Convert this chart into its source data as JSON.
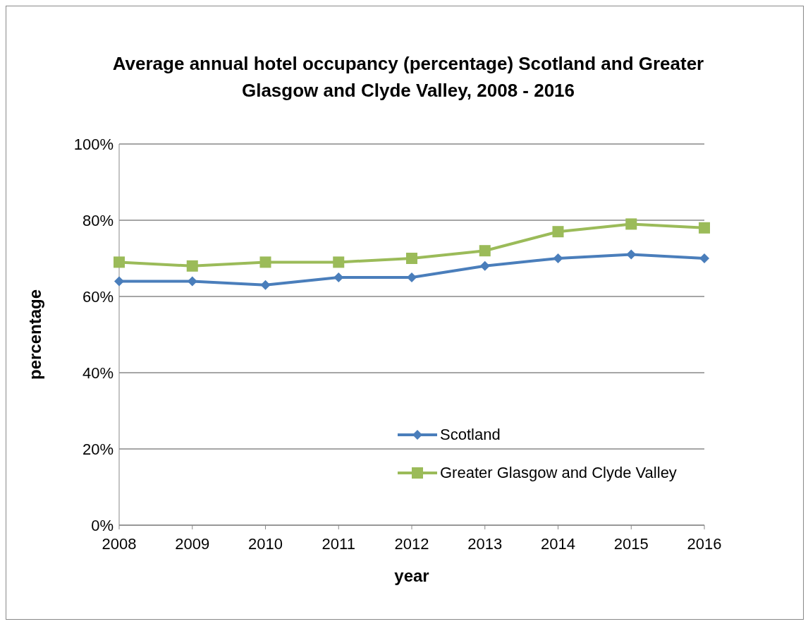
{
  "chart_data": {
    "type": "line",
    "title": "Average annual hotel occupancy (percentage) Scotland and Greater Glasgow and Clyde Valley, 2008  - 2016",
    "xlabel": "year",
    "ylabel": "percentage",
    "categories": [
      "2008",
      "2009",
      "2010",
      "2011",
      "2012",
      "2013",
      "2014",
      "2015",
      "2016"
    ],
    "series": [
      {
        "name": "Scotland",
        "color": "#4a7ebb",
        "marker": "diamond",
        "values": [
          64,
          64,
          63,
          65,
          65,
          68,
          70,
          71,
          70
        ]
      },
      {
        "name": "Greater Glasgow and Clyde Valley",
        "color": "#9bbb59",
        "marker": "square",
        "values": [
          69,
          68,
          69,
          69,
          70,
          72,
          77,
          79,
          78
        ]
      }
    ],
    "ylim": [
      0,
      100
    ],
    "yticks": [
      {
        "value": 0,
        "label": "0%"
      },
      {
        "value": 20,
        "label": "20%"
      },
      {
        "value": 40,
        "label": "40%"
      },
      {
        "value": 60,
        "label": "60%"
      },
      {
        "value": 80,
        "label": "80%"
      },
      {
        "value": 100,
        "label": "100%"
      }
    ],
    "grid": "y",
    "legend": "bottom right",
    "line_style": "solid"
  }
}
